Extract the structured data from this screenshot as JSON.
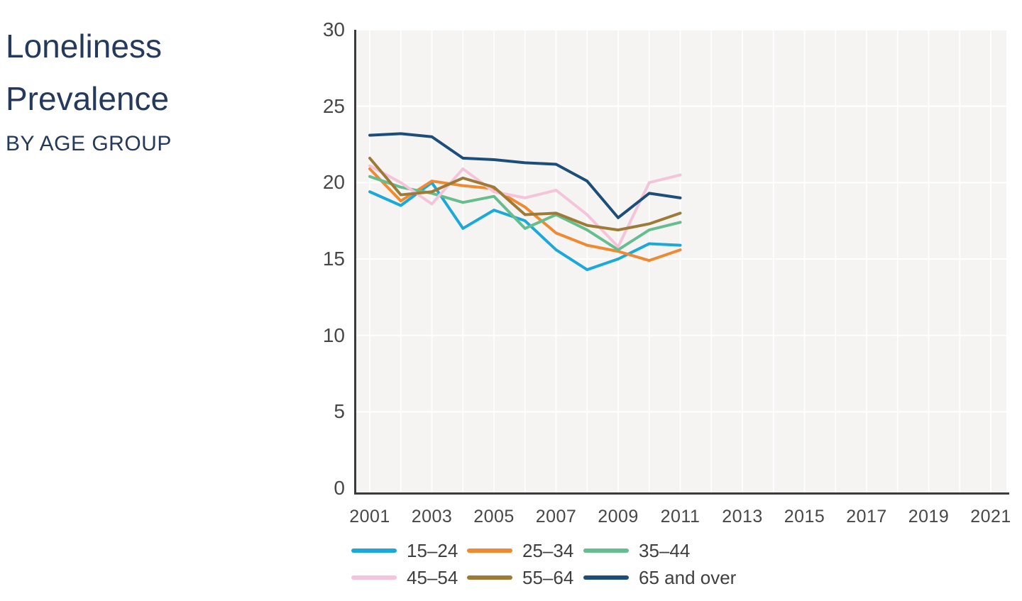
{
  "page": {
    "title_line1": "Loneliness",
    "title_line2": "Prevalence",
    "subtitle": "BY AGE GROUP",
    "title_color": "#24395b"
  },
  "chart_data": {
    "type": "line",
    "title": "Loneliness Prevalence by Age Group",
    "xlabel": "",
    "ylabel": "",
    "x": [
      2001,
      2002,
      2003,
      2004,
      2005,
      2006,
      2007,
      2008,
      2009,
      2010,
      2011
    ],
    "series": [
      {
        "name": "15–24",
        "color": "#1ca9d9",
        "values": [
          19.4,
          18.5,
          20.0,
          17.0,
          18.2,
          17.5,
          15.6,
          14.3,
          15.0,
          16.0,
          15.9
        ]
      },
      {
        "name": "25–34",
        "color": "#ef8a33",
        "values": [
          20.9,
          18.8,
          20.1,
          19.8,
          19.6,
          18.4,
          16.7,
          15.9,
          15.5,
          14.9,
          15.6
        ]
      },
      {
        "name": "35–44",
        "color": "#66bd8e",
        "values": [
          20.4,
          19.7,
          19.3,
          18.7,
          19.1,
          17.0,
          17.9,
          16.9,
          15.6,
          16.9,
          17.4
        ]
      },
      {
        "name": "45–54",
        "color": "#f4c5da",
        "values": [
          21.1,
          20.0,
          18.6,
          20.9,
          19.4,
          19.0,
          19.5,
          17.9,
          15.8,
          20.0,
          20.5
        ]
      },
      {
        "name": "55–64",
        "color": "#9d7b36",
        "values": [
          21.6,
          19.2,
          19.4,
          20.3,
          19.7,
          17.9,
          18.0,
          17.2,
          16.9,
          17.3,
          18.0
        ]
      },
      {
        "name": "65 and over",
        "color": "#1d4e79",
        "values": [
          23.1,
          23.2,
          23.0,
          21.6,
          21.5,
          21.3,
          21.2,
          20.1,
          17.7,
          19.3,
          19.0
        ]
      }
    ],
    "y_ticks": [
      0,
      5,
      10,
      15,
      20,
      25,
      30
    ],
    "x_tick_labels": [
      "2001",
      "2003",
      "2005",
      "2007",
      "2009",
      "2011",
      "2013",
      "2015",
      "2017",
      "2019",
      "2021"
    ],
    "ylim": [
      0,
      30
    ],
    "xlim": [
      2000.6,
      2021.5
    ],
    "grid": "white gridlines on light-gray panel, vertical each year, horizontal every 5",
    "plot_bg": "#f5f4f3",
    "legend_position": "bottom"
  }
}
